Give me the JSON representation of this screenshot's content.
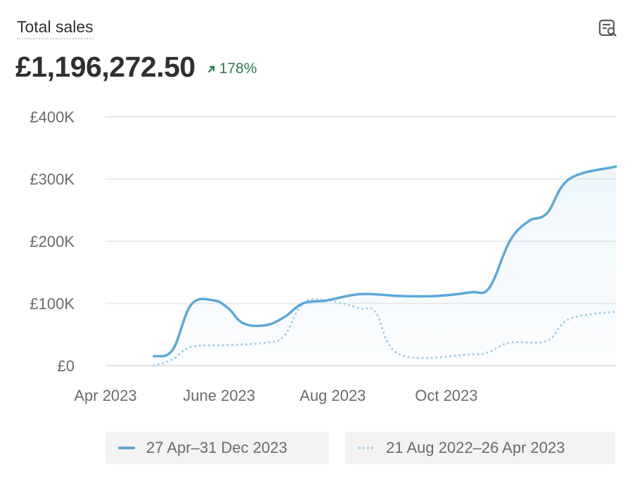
{
  "header": {
    "title": "Total sales",
    "total": "£1,196,272.50",
    "delta": "178%",
    "delta_color": "#2f7a4c",
    "action_icon": "search-report-icon"
  },
  "legend": {
    "current": "27 Apr–31 Dec 2023",
    "previous": "21 Aug 2022–26 Apr 2023"
  },
  "colors": {
    "current": "#5ba8d8",
    "previous": "#a9cfe8",
    "grid": "#ebebeb",
    "axis_text": "#6b6b6b"
  },
  "chart_data": {
    "type": "line",
    "y_ticks": [
      "£0",
      "£100K",
      "£200K",
      "£300K",
      "£400K"
    ],
    "x_ticks": [
      "Apr 2023",
      "June 2023",
      "Aug 2023",
      "Oct 2023"
    ],
    "ylim": [
      0,
      400000
    ],
    "grid": true,
    "legend_position": "bottom",
    "series": [
      {
        "name": "27 Apr–31 Dec 2023",
        "style": "solid",
        "x": [
          "2023-04-27",
          "2023-05-07",
          "2023-05-17",
          "2023-05-29",
          "2023-06-06",
          "2023-06-14",
          "2023-06-26",
          "2023-07-06",
          "2023-07-16",
          "2023-07-29",
          "2023-08-16",
          "2023-09-06",
          "2023-09-26",
          "2023-10-14",
          "2023-10-24",
          "2023-11-04",
          "2023-11-14",
          "2023-11-24",
          "2023-12-06",
          "2023-12-31"
        ],
        "values": [
          15000,
          25000,
          98000,
          105000,
          92000,
          68000,
          65000,
          78000,
          100000,
          105000,
          115000,
          112000,
          112000,
          118000,
          125000,
          200000,
          232000,
          245000,
          300000,
          320000
        ]
      },
      {
        "name": "21 Aug 2022–26 Apr 2023",
        "style": "dotted",
        "x": [
          "2023-04-27",
          "2023-05-07",
          "2023-05-17",
          "2023-06-06",
          "2023-06-26",
          "2023-07-06",
          "2023-07-16",
          "2023-07-29",
          "2023-08-16",
          "2023-08-24",
          "2023-09-06",
          "2023-10-14",
          "2023-10-24",
          "2023-11-04",
          "2023-11-24",
          "2023-12-06",
          "2023-12-31"
        ],
        "values": [
          0,
          10000,
          30000,
          33000,
          37000,
          48000,
          100000,
          105000,
          92000,
          86000,
          18000,
          18000,
          22000,
          37000,
          40000,
          75000,
          87000
        ]
      }
    ]
  }
}
